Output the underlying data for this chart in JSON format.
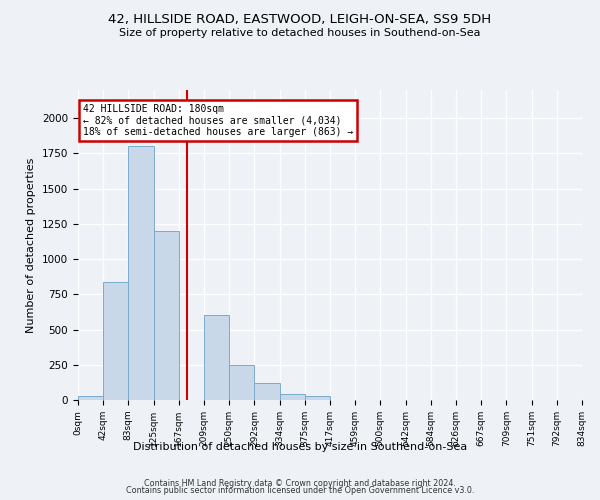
{
  "title": "42, HILLSIDE ROAD, EASTWOOD, LEIGH-ON-SEA, SS9 5DH",
  "subtitle": "Size of property relative to detached houses in Southend-on-Sea",
  "xlabel": "Distribution of detached houses by size in Southend-on-Sea",
  "ylabel": "Number of detached properties",
  "bar_edges": [
    0,
    42,
    83,
    125,
    167,
    209,
    250,
    292,
    334,
    375,
    417,
    459,
    500,
    542,
    584,
    626,
    667,
    709,
    751,
    792,
    834
  ],
  "bar_heights": [
    25,
    840,
    1800,
    1200,
    0,
    600,
    250,
    120,
    40,
    25,
    0,
    0,
    0,
    0,
    0,
    0,
    0,
    0,
    0,
    0
  ],
  "bar_color": "#c8d8e8",
  "bar_edge_color": "#7aaacc",
  "vline_x": 180,
  "vline_color": "#cc0000",
  "annotation_text_line1": "42 HILLSIDE ROAD: 180sqm",
  "annotation_text_line2": "← 82% of detached houses are smaller (4,034)",
  "annotation_text_line3": "18% of semi-detached houses are larger (863) →",
  "annotation_box_color": "#cc0000",
  "ylim": [
    0,
    2200
  ],
  "tick_labels": [
    "0sqm",
    "42sqm",
    "83sqm",
    "125sqm",
    "167sqm",
    "209sqm",
    "250sqm",
    "292sqm",
    "334sqm",
    "375sqm",
    "417sqm",
    "459sqm",
    "500sqm",
    "542sqm",
    "584sqm",
    "626sqm",
    "667sqm",
    "709sqm",
    "751sqm",
    "792sqm",
    "834sqm"
  ],
  "footnote_line1": "Contains HM Land Registry data © Crown copyright and database right 2024.",
  "footnote_line2": "Contains public sector information licensed under the Open Government Licence v3.0.",
  "background_color": "#eef2f7"
}
